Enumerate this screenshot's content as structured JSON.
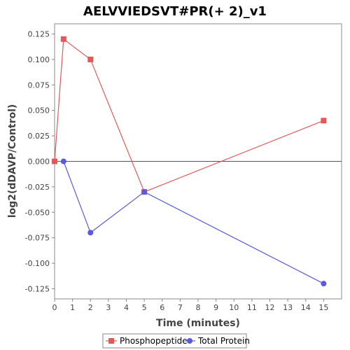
{
  "chart_data": {
    "type": "line",
    "title": "AELVVIEDSVT#PR(+ 2)_v1",
    "xlabel": "Time (minutes)",
    "ylabel": "log2(dDAVP/Control)",
    "xlim": [
      0,
      16
    ],
    "ylim": [
      -0.135,
      0.135
    ],
    "x_ticks": [
      0,
      1,
      2,
      3,
      4,
      5,
      6,
      7,
      8,
      9,
      10,
      11,
      12,
      13,
      14,
      15
    ],
    "x_tick_labels": [
      "0",
      "1",
      "2",
      "3",
      "4",
      "5",
      "6",
      "7",
      "8",
      "9",
      "10",
      "11",
      "12",
      "13",
      "14",
      "15"
    ],
    "y_ticks": [
      0.125,
      0.1,
      0.075,
      0.05,
      0.025,
      0.0,
      -0.025,
      -0.05,
      -0.075,
      -0.1,
      -0.125
    ],
    "y_tick_labels": [
      "0.125",
      "0.100",
      "0.075",
      "0.050",
      "0.025",
      "0.000",
      "-0.025",
      "-0.050",
      "-0.075",
      "-0.100",
      "-0.125"
    ],
    "grid": false,
    "zero_line": true,
    "legend_position": "bottom",
    "series": [
      {
        "name": "Phosphopeptide",
        "color": "#e05a5a",
        "marker": "square",
        "x": [
          0,
          0.5,
          2,
          5,
          15
        ],
        "y": [
          0.0,
          0.12,
          0.1,
          -0.03,
          0.04
        ]
      },
      {
        "name": "Total Protein",
        "color": "#5a5ae0",
        "marker": "circle",
        "x": [
          0.5,
          2,
          5,
          15
        ],
        "y": [
          0.0,
          -0.07,
          -0.03,
          -0.12
        ]
      }
    ]
  }
}
